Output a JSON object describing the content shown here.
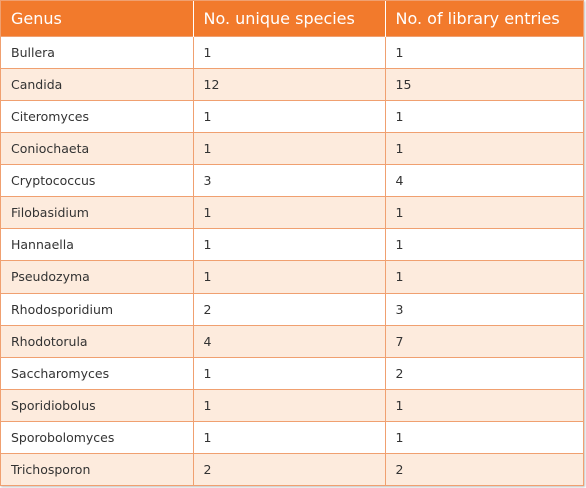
{
  "headers": [
    "Genus",
    "No. unique species",
    "No. of library entries"
  ],
  "rows": [
    [
      "Bullera",
      "1",
      "1"
    ],
    [
      "Candida",
      "12",
      "15"
    ],
    [
      "Citeromyces",
      "1",
      "1"
    ],
    [
      "Coniochaeta",
      "1",
      "1"
    ],
    [
      "Cryptococcus",
      "3",
      "4"
    ],
    [
      "Filobasidium",
      "1",
      "1"
    ],
    [
      "Hannaella",
      "1",
      "1"
    ],
    [
      "Pseudozyma",
      "1",
      "1"
    ],
    [
      "Rhodosporidium",
      "2",
      "3"
    ],
    [
      "Rhodotorula",
      "4",
      "7"
    ],
    [
      "Saccharomyces",
      "1",
      "2"
    ],
    [
      "Sporidiobolus",
      "1",
      "1"
    ],
    [
      "Sporobolomyces",
      "1",
      "1"
    ],
    [
      "Trichosporon",
      "2",
      "2"
    ]
  ],
  "colors": {
    "header_bg": "#f27a2c",
    "stripe": "#fdebdd",
    "border": "#f0a070"
  }
}
